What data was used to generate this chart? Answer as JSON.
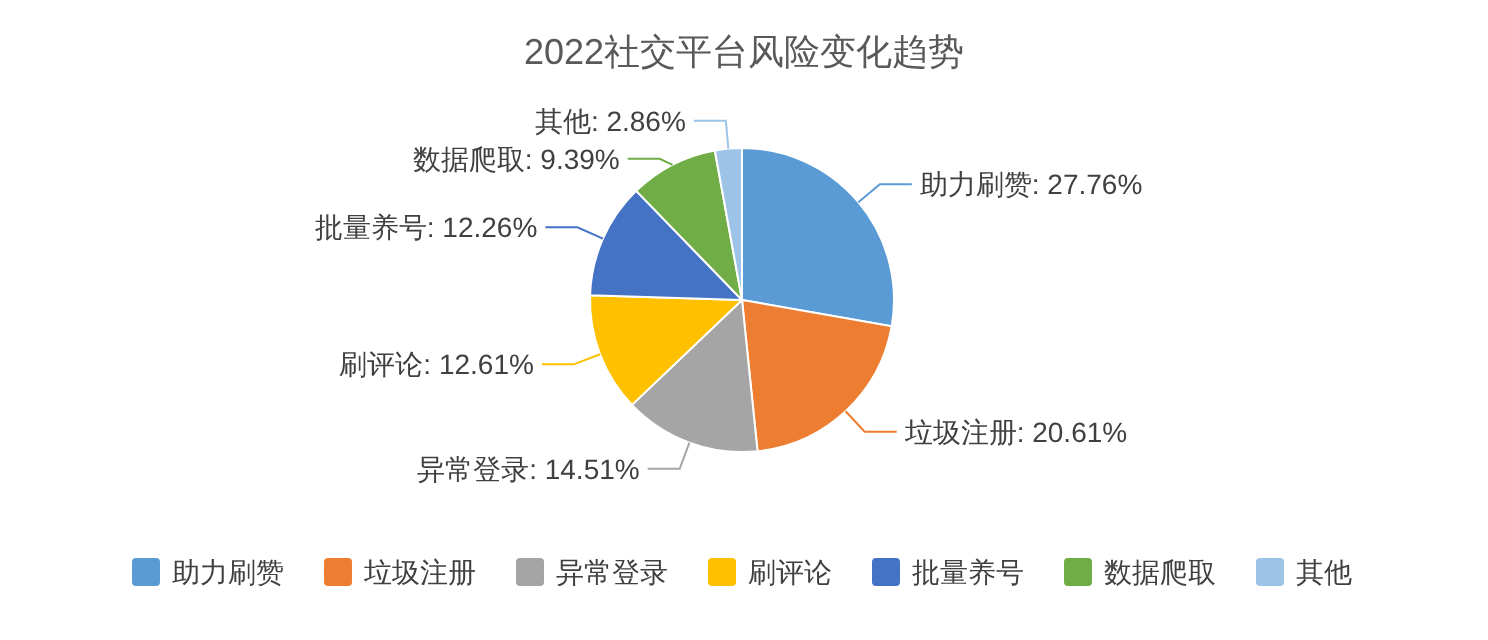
{
  "chart_data": {
    "type": "pie",
    "title": "2022社交平台风险变化趋势",
    "categories": [
      "助力刷赞",
      "垃圾注册",
      "异常登录",
      "刷评论",
      "批量养号",
      "数据爬取",
      "其他"
    ],
    "values": [
      27.76,
      20.61,
      14.51,
      12.61,
      12.26,
      9.39,
      2.86
    ],
    "colors": [
      "#5b9bd5",
      "#ed7d31",
      "#a5a5a5",
      "#ffc000",
      "#4472c4",
      "#70ad47",
      "#9dc3e6"
    ],
    "value_labels": [
      "助力刷赞: 27.76%",
      "垃圾注册: 20.61%",
      "异常登录: 14.51%",
      "刷评论: 12.61%",
      "批量养号: 12.26%",
      "数据爬取: 9.39%",
      "其他: 2.86%"
    ],
    "legend": "bottom"
  }
}
